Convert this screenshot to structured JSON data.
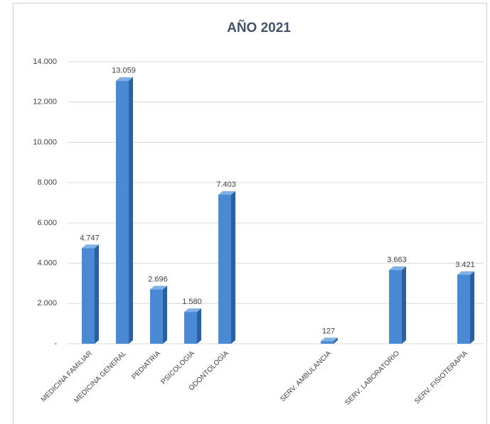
{
  "chart_data": {
    "type": "bar3d",
    "title": "AÑO 2021",
    "categories": [
      "MEDICINA FAMILIAR",
      "MEDICINA GENERAL",
      "PEDIATRIA",
      "PSICOLOGIA",
      "ODONTOLOGÍA",
      null,
      null,
      "SERV. AMBULANCIA",
      null,
      "SERV. LABORATORIO",
      null,
      "SERV. FISIOTERAPIA"
    ],
    "values": [
      4747,
      13059,
      2696,
      1580,
      7403,
      null,
      null,
      127,
      null,
      3663,
      null,
      3421
    ],
    "value_labels": [
      "4.747",
      "13.059",
      "2.696",
      "1.580",
      "7.403",
      null,
      null,
      "127",
      null,
      "3.663",
      null,
      "3.421"
    ],
    "color": "#4a8ad4",
    "ylim": [
      0,
      14000
    ],
    "yticks": [
      {
        "value": 0,
        "label": "-"
      },
      {
        "value": 2000,
        "label": "2.000"
      },
      {
        "value": 4000,
        "label": "4.000"
      },
      {
        "value": 6000,
        "label": "6.000"
      },
      {
        "value": 8000,
        "label": "8.000"
      },
      {
        "value": 10000,
        "label": "10.000"
      },
      {
        "value": 12000,
        "label": "12.000"
      },
      {
        "value": 14000,
        "label": "14.000"
      }
    ],
    "grid": true
  }
}
